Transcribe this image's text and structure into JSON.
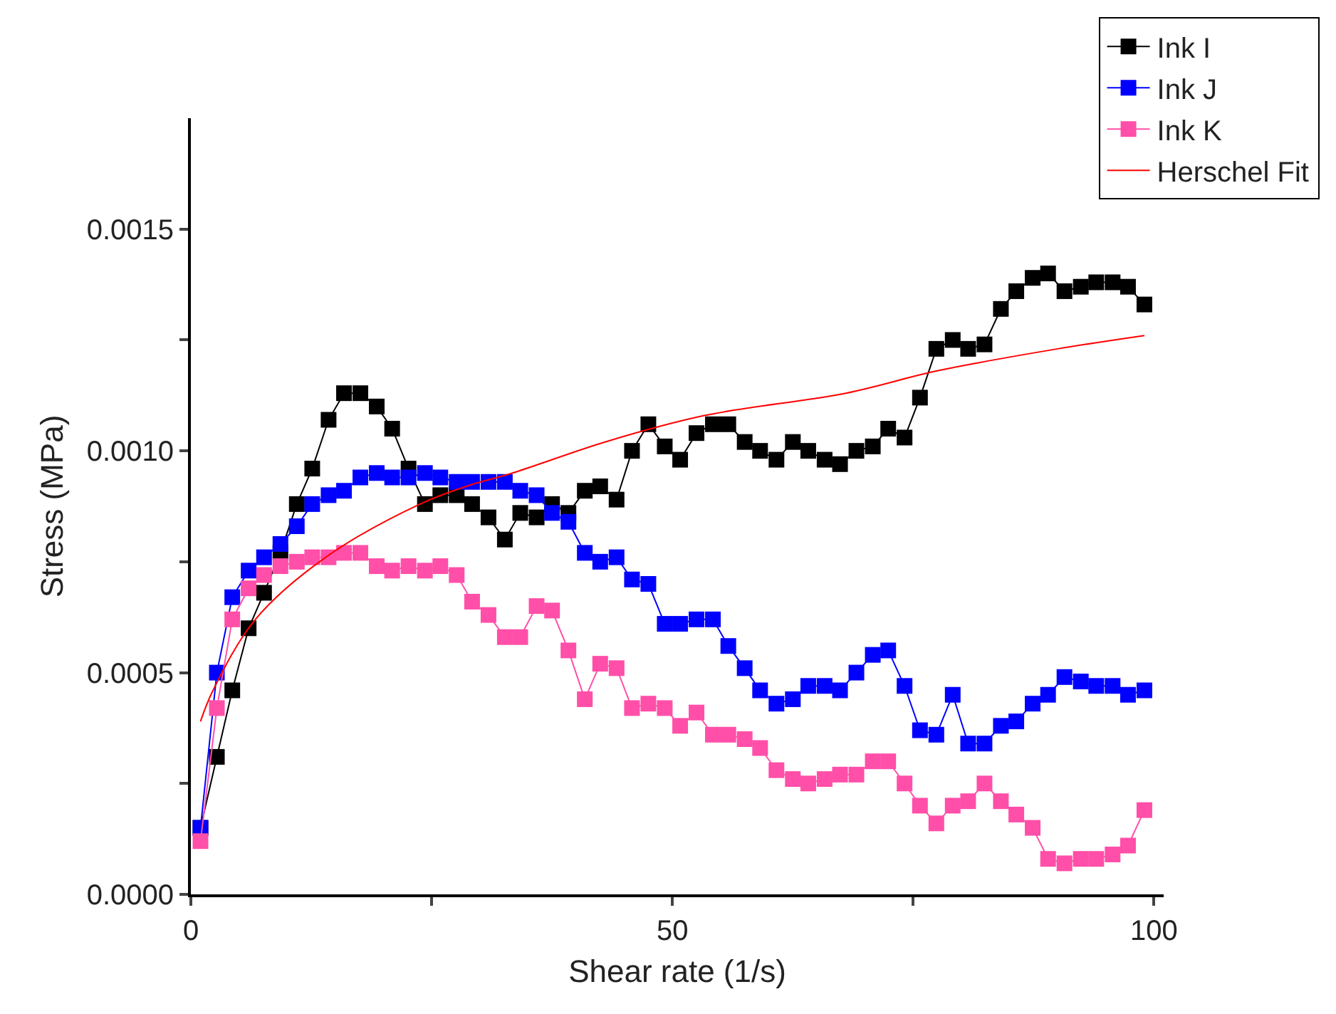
{
  "chart_data": {
    "type": "line",
    "xlabel": "Shear rate (1/s)",
    "ylabel": "Stress (MPa)",
    "x": [
      1,
      2.7,
      4.3,
      6.0,
      7.6,
      9.3,
      11.0,
      12.6,
      14.3,
      15.9,
      17.6,
      19.3,
      20.9,
      22.6,
      24.3,
      25.9,
      27.6,
      29.2,
      30.9,
      32.6,
      34.2,
      35.9,
      37.5,
      39.2,
      40.9,
      42.5,
      44.2,
      45.8,
      47.5,
      49.2,
      50.8,
      52.5,
      54.2,
      55.8,
      57.5,
      59.1,
      60.8,
      62.5,
      64.1,
      65.8,
      67.4,
      69.1,
      70.8,
      72.4,
      74.1,
      75.7,
      77.4,
      79.1,
      80.7,
      82.4,
      84.1,
      85.7,
      87.4,
      89.0,
      90.7,
      92.4,
      94.0,
      95.7,
      97.3,
      99.0
    ],
    "series": [
      {
        "name": "Ink I",
        "color": "#000000",
        "marker": "square",
        "values": [
          0.00015,
          0.00031,
          0.00046,
          0.0006,
          0.00068,
          0.00077,
          0.00088,
          0.00096,
          0.00107,
          0.00113,
          0.00113,
          0.0011,
          0.00105,
          0.00096,
          0.00088,
          0.0009,
          0.0009,
          0.00088,
          0.00085,
          0.0008,
          0.00086,
          0.00085,
          0.00088,
          0.00086,
          0.00091,
          0.00092,
          0.00089,
          0.001,
          0.00106,
          0.00101,
          0.00098,
          0.00104,
          0.00106,
          0.00106,
          0.00102,
          0.001,
          0.00098,
          0.00102,
          0.001,
          0.00098,
          0.00097,
          0.001,
          0.00101,
          0.00105,
          0.00103,
          0.00112,
          0.00123,
          0.00125,
          0.00123,
          0.00124,
          0.00132,
          0.00136,
          0.00139,
          0.0014,
          0.00136,
          0.00137,
          0.00138,
          0.00138,
          0.00137,
          0.00133
        ]
      },
      {
        "name": "Ink J",
        "color": "#0000ff",
        "marker": "square",
        "values": [
          0.00015,
          0.0005,
          0.00067,
          0.00073,
          0.00076,
          0.00079,
          0.00083,
          0.00088,
          0.0009,
          0.00091,
          0.00094,
          0.00095,
          0.00094,
          0.00094,
          0.00095,
          0.00094,
          0.00093,
          0.00093,
          0.00093,
          0.00093,
          0.00091,
          0.0009,
          0.00086,
          0.00084,
          0.00077,
          0.00075,
          0.00076,
          0.00071,
          0.0007,
          0.00061,
          0.00061,
          0.00062,
          0.00062,
          0.00056,
          0.00051,
          0.00046,
          0.00043,
          0.00044,
          0.00047,
          0.00047,
          0.00046,
          0.0005,
          0.00054,
          0.00055,
          0.00047,
          0.00037,
          0.00036,
          0.00045,
          0.00034,
          0.00034,
          0.00038,
          0.00039,
          0.00043,
          0.00045,
          0.00049,
          0.00048,
          0.00047,
          0.00047,
          0.00045,
          0.00046
        ]
      },
      {
        "name": "Ink K",
        "color": "#ff4fa8",
        "marker": "square",
        "values": [
          0.00012,
          0.00042,
          0.00062,
          0.00069,
          0.00072,
          0.00074,
          0.00075,
          0.00076,
          0.00076,
          0.00077,
          0.00077,
          0.00074,
          0.00073,
          0.00074,
          0.00073,
          0.00074,
          0.00072,
          0.00066,
          0.00063,
          0.00058,
          0.00058,
          0.00065,
          0.00064,
          0.00055,
          0.00044,
          0.00052,
          0.00051,
          0.00042,
          0.00043,
          0.00042,
          0.00038,
          0.00041,
          0.00036,
          0.00036,
          0.00035,
          0.00033,
          0.00028,
          0.00026,
          0.00025,
          0.00026,
          0.00027,
          0.00027,
          0.0003,
          0.0003,
          0.00025,
          0.0002,
          0.00016,
          0.0002,
          0.00021,
          0.00025,
          0.00021,
          0.00018,
          0.00015,
          8e-05,
          7e-05,
          8e-05,
          8e-05,
          9e-05,
          0.00011,
          0.00019
        ]
      },
      {
        "name": "Herschel Fit",
        "color": "#ff0000",
        "marker": "none",
        "x": [
          1,
          2.3,
          6.7,
          14,
          23.8,
          28.6,
          33.4,
          43,
          53.4,
          68,
          77.4,
          90,
          99
        ],
        "values": [
          0.00039,
          0.00046,
          0.00062,
          0.00076,
          0.00088,
          0.00092,
          0.00095,
          0.00102,
          0.00108,
          0.00113,
          0.00118,
          0.00123,
          0.00126
        ]
      }
    ],
    "xlim": [
      0,
      101
    ],
    "xticks": [
      0,
      {
        "value": 25,
        "label": null
      },
      50,
      {
        "value": 75,
        "label": null
      },
      100
    ],
    "ylim": [
      0,
      0.00175
    ],
    "yticks": [
      {
        "value": 0,
        "label": "0.0000"
      },
      {
        "value": 0.00025,
        "label": null
      },
      {
        "value": 0.0005,
        "label": "0.0005"
      },
      {
        "value": 0.00075,
        "label": null
      },
      {
        "value": 0.001,
        "label": "0.0010"
      },
      {
        "value": 0.00125,
        "label": null
      },
      {
        "value": 0.0015,
        "label": "0.0015"
      }
    ],
    "legend": "top right",
    "line_style": "solid"
  }
}
